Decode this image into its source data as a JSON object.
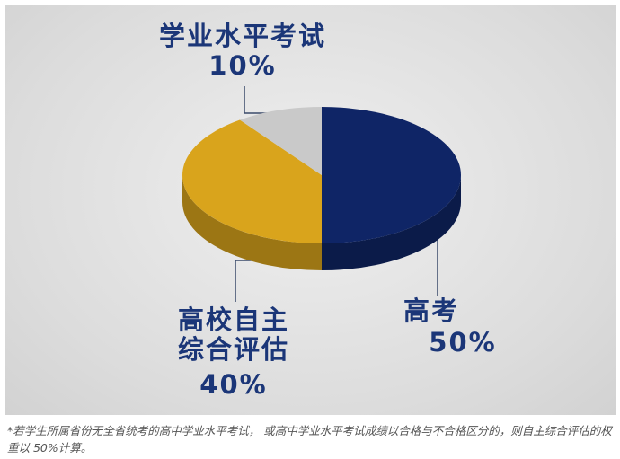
{
  "chart_data": {
    "type": "pie3d",
    "categories": [
      "高考",
      "高校自主综合评估",
      "学业水平考试"
    ],
    "values": [
      50,
      40,
      10
    ],
    "value_labels": [
      "50%",
      "40%",
      "10%"
    ],
    "colors": [
      "#0f2566",
      "#d9a41c",
      "#c9c9c9"
    ],
    "footnote": "*若学生所属省份无全省统考的高中学业水平考试， 或高中学业水平考试成绩以合格与不合格区分的，则自主综合评估的权重以 50%计算。"
  }
}
